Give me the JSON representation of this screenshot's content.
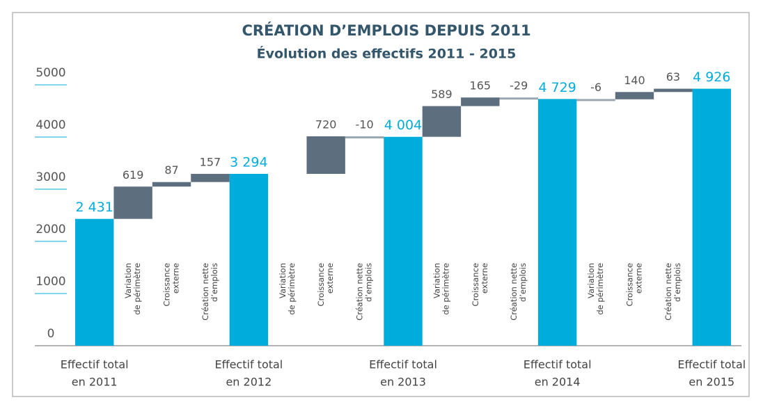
{
  "chart_data": {
    "type": "waterfall",
    "title": "CRÉATION D’EMPLOIS DEPUIS 2011",
    "subtitle": "Évolution des effectifs 2011 - 2015",
    "categories": [
      [
        "Effectif total",
        "en 2011"
      ],
      [
        "Variation",
        "de périmètre"
      ],
      [
        "Croissance",
        "externe"
      ],
      [
        "Création nette",
        "d’emplois"
      ],
      [
        "Effectif total",
        "en 2012"
      ],
      [
        "Variation",
        "de périmètre"
      ],
      [
        "Croissance",
        "externe"
      ],
      [
        "Création nette",
        "d’emplois"
      ],
      [
        "Effectif total",
        "en 2013"
      ],
      [
        "Variation",
        "de périmètre"
      ],
      [
        "Croissance",
        "externe"
      ],
      [
        "Création nette",
        "d’emplois"
      ],
      [
        "Effectif total",
        "en 2014"
      ],
      [
        "Variation",
        "de périmètre"
      ],
      [
        "Croissance",
        "externe"
      ],
      [
        "Création nette",
        "d’emplois"
      ],
      [
        "Effectif total",
        "en 2015"
      ]
    ],
    "measure": [
      "total",
      "relative",
      "relative",
      "relative",
      "total",
      "relative",
      "relative",
      "relative",
      "total",
      "relative",
      "relative",
      "relative",
      "total",
      "relative",
      "relative",
      "relative",
      "total"
    ],
    "values": [
      2431,
      619,
      87,
      157,
      3294,
      null,
      720,
      -10,
      4004,
      589,
      165,
      -29,
      4729,
      -6,
      140,
      63,
      4926
    ],
    "value_labels": [
      "2 431",
      null,
      null,
      null,
      "3 294",
      null,
      null,
      null,
      "4 004",
      null,
      null,
      null,
      "4 729",
      null,
      null,
      null,
      "4 926"
    ],
    "total_color": "#00acdc",
    "delta_color": "#5d6f7e",
    "ylim": [
      0,
      5000
    ],
    "yticks": [
      0,
      1000,
      2000,
      3000,
      4000,
      5000
    ]
  }
}
